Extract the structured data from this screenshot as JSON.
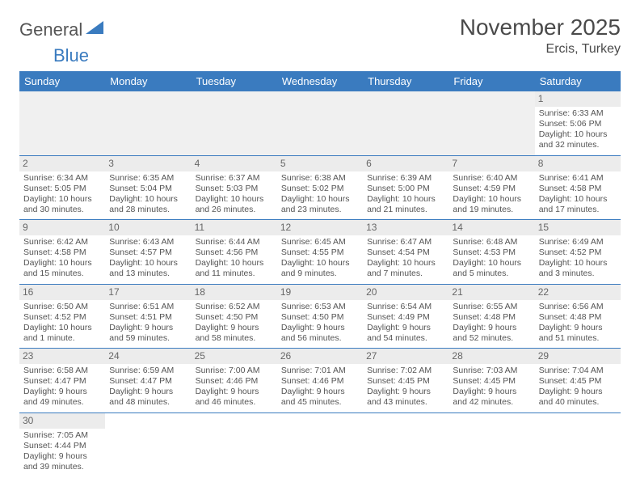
{
  "logo": {
    "text1": "General",
    "text2": "Blue"
  },
  "title": "November 2025",
  "location": "Ercis, Turkey",
  "colors": {
    "header_bg": "#3a7bbf",
    "header_fg": "#ffffff",
    "daynum_bg": "#ececec",
    "text": "#545454",
    "rule": "#3a7bbf"
  },
  "day_headers": [
    "Sunday",
    "Monday",
    "Tuesday",
    "Wednesday",
    "Thursday",
    "Friday",
    "Saturday"
  ],
  "weeks": [
    [
      null,
      null,
      null,
      null,
      null,
      null,
      {
        "n": "1",
        "sr": "Sunrise: 6:33 AM",
        "ss": "Sunset: 5:06 PM",
        "dl": "Daylight: 10 hours and 32 minutes."
      }
    ],
    [
      {
        "n": "2",
        "sr": "Sunrise: 6:34 AM",
        "ss": "Sunset: 5:05 PM",
        "dl": "Daylight: 10 hours and 30 minutes."
      },
      {
        "n": "3",
        "sr": "Sunrise: 6:35 AM",
        "ss": "Sunset: 5:04 PM",
        "dl": "Daylight: 10 hours and 28 minutes."
      },
      {
        "n": "4",
        "sr": "Sunrise: 6:37 AM",
        "ss": "Sunset: 5:03 PM",
        "dl": "Daylight: 10 hours and 26 minutes."
      },
      {
        "n": "5",
        "sr": "Sunrise: 6:38 AM",
        "ss": "Sunset: 5:02 PM",
        "dl": "Daylight: 10 hours and 23 minutes."
      },
      {
        "n": "6",
        "sr": "Sunrise: 6:39 AM",
        "ss": "Sunset: 5:00 PM",
        "dl": "Daylight: 10 hours and 21 minutes."
      },
      {
        "n": "7",
        "sr": "Sunrise: 6:40 AM",
        "ss": "Sunset: 4:59 PM",
        "dl": "Daylight: 10 hours and 19 minutes."
      },
      {
        "n": "8",
        "sr": "Sunrise: 6:41 AM",
        "ss": "Sunset: 4:58 PM",
        "dl": "Daylight: 10 hours and 17 minutes."
      }
    ],
    [
      {
        "n": "9",
        "sr": "Sunrise: 6:42 AM",
        "ss": "Sunset: 4:58 PM",
        "dl": "Daylight: 10 hours and 15 minutes."
      },
      {
        "n": "10",
        "sr": "Sunrise: 6:43 AM",
        "ss": "Sunset: 4:57 PM",
        "dl": "Daylight: 10 hours and 13 minutes."
      },
      {
        "n": "11",
        "sr": "Sunrise: 6:44 AM",
        "ss": "Sunset: 4:56 PM",
        "dl": "Daylight: 10 hours and 11 minutes."
      },
      {
        "n": "12",
        "sr": "Sunrise: 6:45 AM",
        "ss": "Sunset: 4:55 PM",
        "dl": "Daylight: 10 hours and 9 minutes."
      },
      {
        "n": "13",
        "sr": "Sunrise: 6:47 AM",
        "ss": "Sunset: 4:54 PM",
        "dl": "Daylight: 10 hours and 7 minutes."
      },
      {
        "n": "14",
        "sr": "Sunrise: 6:48 AM",
        "ss": "Sunset: 4:53 PM",
        "dl": "Daylight: 10 hours and 5 minutes."
      },
      {
        "n": "15",
        "sr": "Sunrise: 6:49 AM",
        "ss": "Sunset: 4:52 PM",
        "dl": "Daylight: 10 hours and 3 minutes."
      }
    ],
    [
      {
        "n": "16",
        "sr": "Sunrise: 6:50 AM",
        "ss": "Sunset: 4:52 PM",
        "dl": "Daylight: 10 hours and 1 minute."
      },
      {
        "n": "17",
        "sr": "Sunrise: 6:51 AM",
        "ss": "Sunset: 4:51 PM",
        "dl": "Daylight: 9 hours and 59 minutes."
      },
      {
        "n": "18",
        "sr": "Sunrise: 6:52 AM",
        "ss": "Sunset: 4:50 PM",
        "dl": "Daylight: 9 hours and 58 minutes."
      },
      {
        "n": "19",
        "sr": "Sunrise: 6:53 AM",
        "ss": "Sunset: 4:50 PM",
        "dl": "Daylight: 9 hours and 56 minutes."
      },
      {
        "n": "20",
        "sr": "Sunrise: 6:54 AM",
        "ss": "Sunset: 4:49 PM",
        "dl": "Daylight: 9 hours and 54 minutes."
      },
      {
        "n": "21",
        "sr": "Sunrise: 6:55 AM",
        "ss": "Sunset: 4:48 PM",
        "dl": "Daylight: 9 hours and 52 minutes."
      },
      {
        "n": "22",
        "sr": "Sunrise: 6:56 AM",
        "ss": "Sunset: 4:48 PM",
        "dl": "Daylight: 9 hours and 51 minutes."
      }
    ],
    [
      {
        "n": "23",
        "sr": "Sunrise: 6:58 AM",
        "ss": "Sunset: 4:47 PM",
        "dl": "Daylight: 9 hours and 49 minutes."
      },
      {
        "n": "24",
        "sr": "Sunrise: 6:59 AM",
        "ss": "Sunset: 4:47 PM",
        "dl": "Daylight: 9 hours and 48 minutes."
      },
      {
        "n": "25",
        "sr": "Sunrise: 7:00 AM",
        "ss": "Sunset: 4:46 PM",
        "dl": "Daylight: 9 hours and 46 minutes."
      },
      {
        "n": "26",
        "sr": "Sunrise: 7:01 AM",
        "ss": "Sunset: 4:46 PM",
        "dl": "Daylight: 9 hours and 45 minutes."
      },
      {
        "n": "27",
        "sr": "Sunrise: 7:02 AM",
        "ss": "Sunset: 4:45 PM",
        "dl": "Daylight: 9 hours and 43 minutes."
      },
      {
        "n": "28",
        "sr": "Sunrise: 7:03 AM",
        "ss": "Sunset: 4:45 PM",
        "dl": "Daylight: 9 hours and 42 minutes."
      },
      {
        "n": "29",
        "sr": "Sunrise: 7:04 AM",
        "ss": "Sunset: 4:45 PM",
        "dl": "Daylight: 9 hours and 40 minutes."
      }
    ],
    [
      {
        "n": "30",
        "sr": "Sunrise: 7:05 AM",
        "ss": "Sunset: 4:44 PM",
        "dl": "Daylight: 9 hours and 39 minutes."
      },
      null,
      null,
      null,
      null,
      null,
      null
    ]
  ]
}
